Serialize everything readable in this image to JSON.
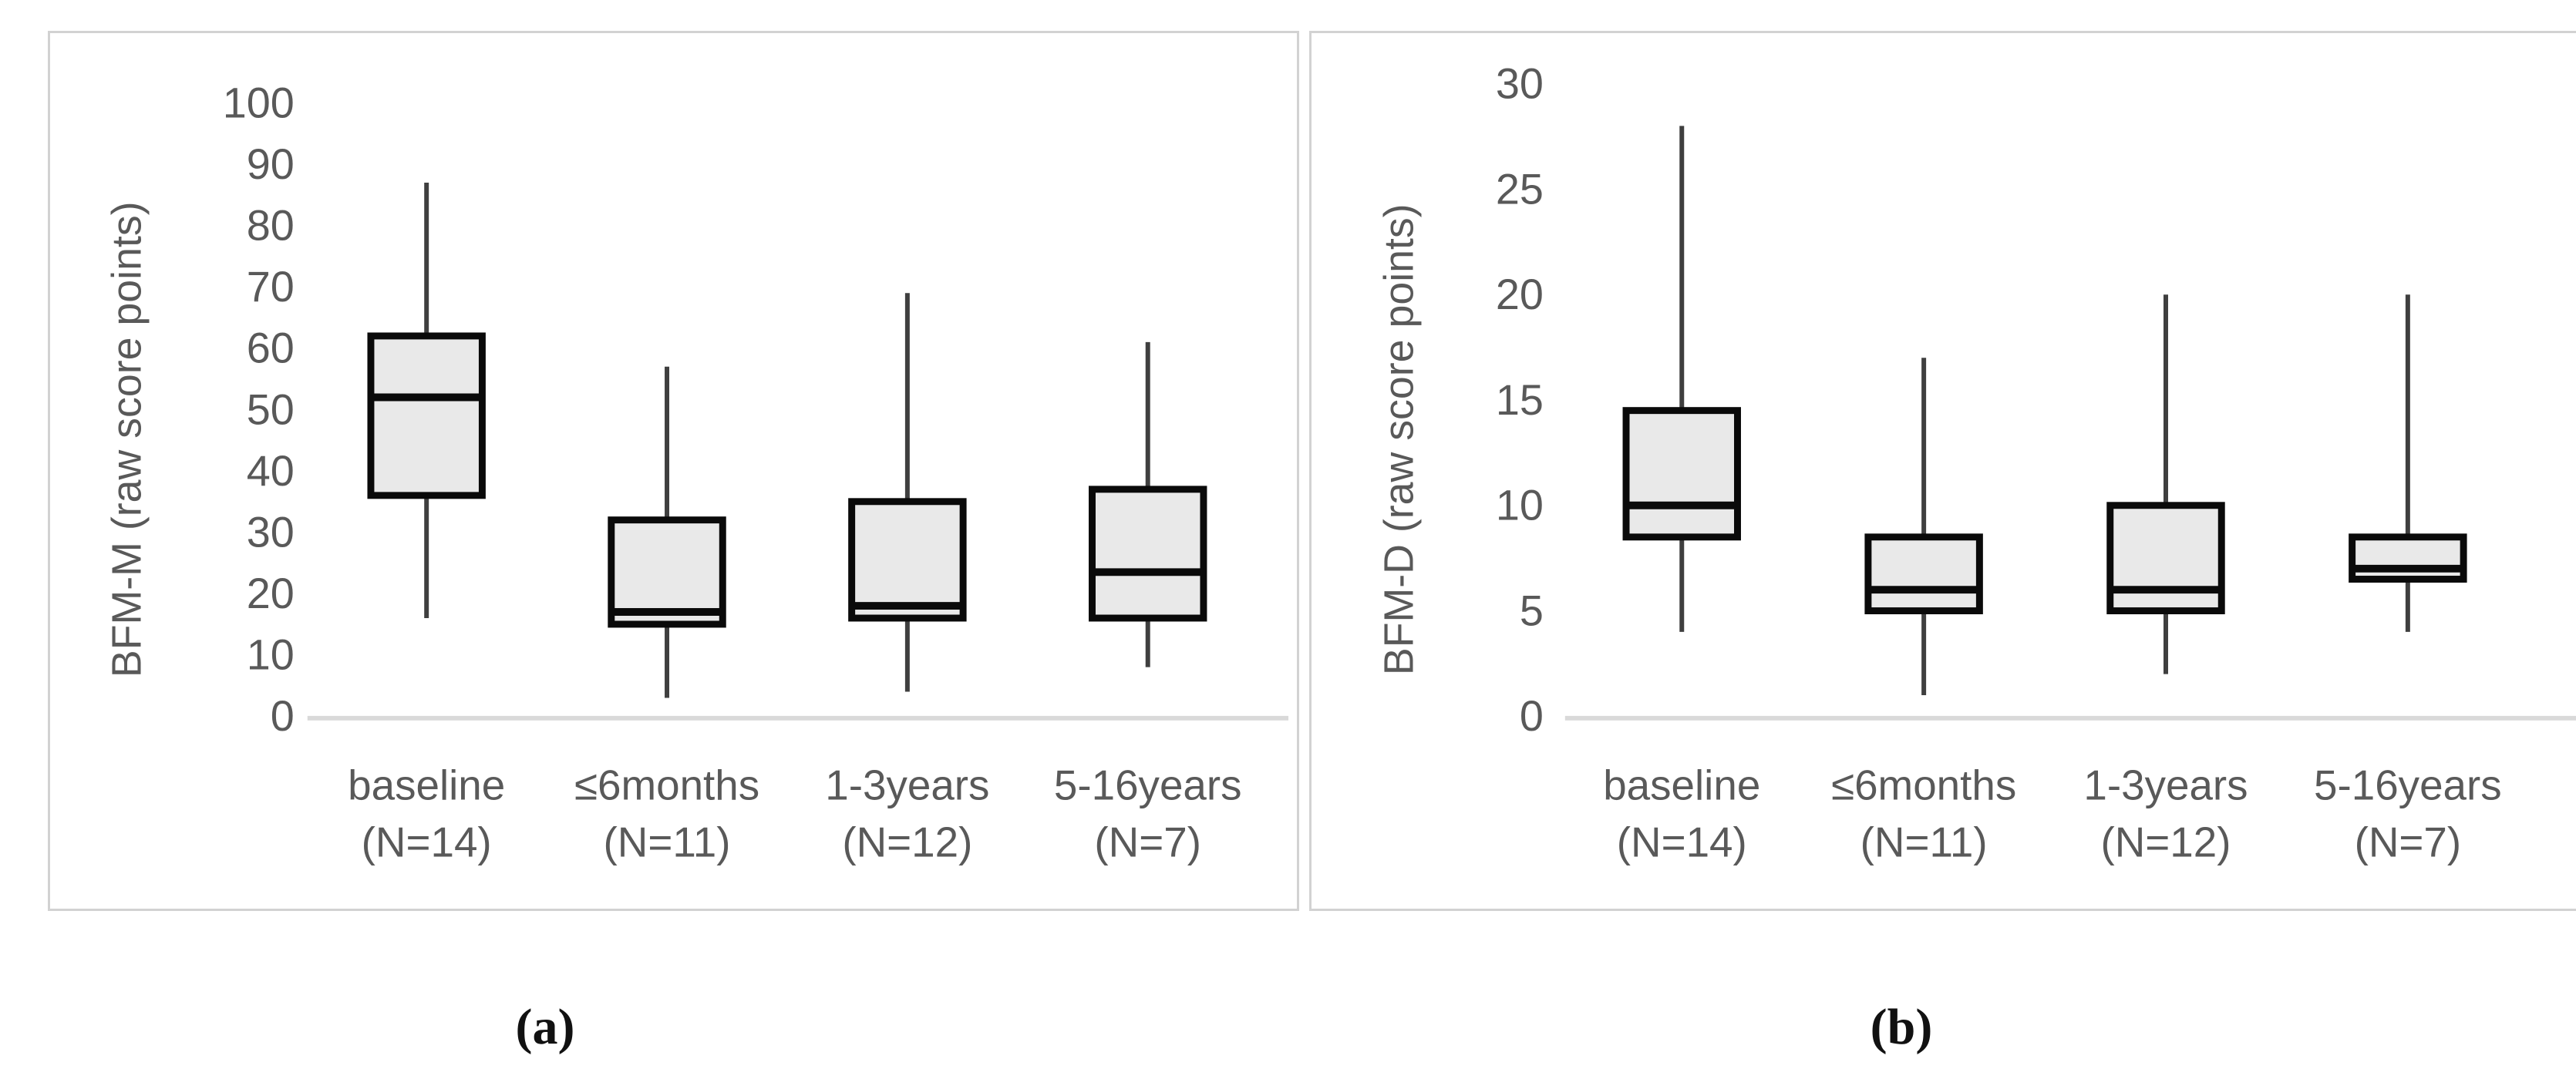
{
  "colors": {
    "box_fill": "#e9e9e9",
    "box_border": "#0a0a0a",
    "median_line": "#0a0a0a",
    "whisker": "#3f3f3f",
    "axis_line": "#d9d9d9",
    "tick_text": "#595959",
    "panel_border": "#d2d2d2",
    "caption_text": "#111111"
  },
  "chart_data": [
    {
      "type": "box",
      "panel_label": "(a)",
      "ylabel": "BFM-M (raw score points)",
      "ylim": [
        0,
        100
      ],
      "tick_step": 10,
      "grid": false,
      "categories": [
        "baseline",
        "≤6months",
        "1-3years",
        "5-16years"
      ],
      "category_n": [
        "(N=14)",
        "(N=11)",
        "(N=12)",
        "(N=7)"
      ],
      "boxes": [
        {
          "whisker_low": 16,
          "q1": 36,
          "median": 52,
          "q3": 62,
          "whisker_high": 87
        },
        {
          "whisker_low": 3,
          "q1": 15,
          "median": 17,
          "q3": 32,
          "whisker_high": 57
        },
        {
          "whisker_low": 4,
          "q1": 16,
          "median": 18,
          "q3": 35,
          "whisker_high": 69
        },
        {
          "whisker_low": 8,
          "q1": 16,
          "median": 23.5,
          "q3": 37,
          "whisker_high": 61
        }
      ]
    },
    {
      "type": "box",
      "panel_label": "(b)",
      "ylabel": "BFM-D (raw score points)",
      "ylim": [
        0,
        30
      ],
      "tick_step": 5,
      "grid": false,
      "categories": [
        "baseline",
        "≤6months",
        "1-3years",
        "5-16years"
      ],
      "category_n": [
        "(N=14)",
        "(N=11)",
        "(N=12)",
        "(N=7)"
      ],
      "boxes": [
        {
          "whisker_low": 4,
          "q1": 8.5,
          "median": 10,
          "q3": 14.5,
          "whisker_high": 28
        },
        {
          "whisker_low": 1,
          "q1": 5,
          "median": 6,
          "q3": 8.5,
          "whisker_high": 17
        },
        {
          "whisker_low": 2,
          "q1": 5,
          "median": 6,
          "q3": 10,
          "whisker_high": 20
        },
        {
          "whisker_low": 4,
          "q1": 6.5,
          "median": 7,
          "q3": 8.5,
          "whisker_high": 20
        }
      ]
    }
  ]
}
